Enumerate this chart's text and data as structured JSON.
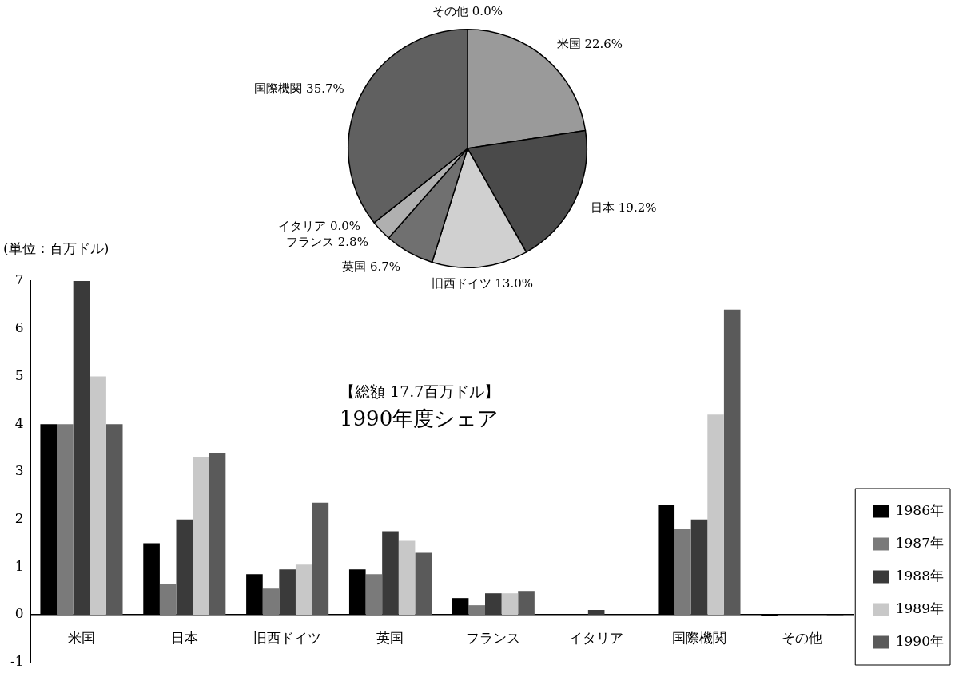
{
  "chart_data": [
    {
      "type": "pie",
      "title": "【総額 17.7百万ドル】",
      "subtitle": "1990年度シェア",
      "categories": [
        "米国",
        "日本",
        "旧西ドイツ",
        "英国",
        "フランス",
        "イタリア",
        "国際機関",
        "その他"
      ],
      "values": [
        22.6,
        19.2,
        13.0,
        6.7,
        2.8,
        0.0,
        35.7,
        0.0
      ],
      "value_labels": [
        "22.6%",
        "19.2%",
        "13.0%",
        "6.7%",
        "2.8%",
        "0.0%",
        "35.7%",
        "0.0%"
      ],
      "colors": [
        "#9a9a9a",
        "#4a4a4a",
        "#d0d0d0",
        "#707070",
        "#b0b0b0",
        "#000000",
        "#606060",
        "#ffffff"
      ]
    },
    {
      "type": "bar",
      "ylabel": "(単位：百万ドル)",
      "categories": [
        "米国",
        "日本",
        "旧西ドイツ",
        "英国",
        "フランス",
        "イタリア",
        "国際機関",
        "その他"
      ],
      "series": [
        {
          "name": "1986年",
          "color": "#000000",
          "values": [
            4,
            1.5,
            0.85,
            0.95,
            0.35,
            0,
            2.3,
            -0.03
          ]
        },
        {
          "name": "1987年",
          "color": "#7a7a7a",
          "values": [
            4,
            0.65,
            0.55,
            0.85,
            0.2,
            0,
            1.8,
            0
          ]
        },
        {
          "name": "1988年",
          "color": "#3a3a3a",
          "values": [
            7,
            2.0,
            0.95,
            1.75,
            0.45,
            0.1,
            2.0,
            0
          ]
        },
        {
          "name": "1989年",
          "color": "#c8c8c8",
          "values": [
            5,
            3.3,
            1.05,
            1.55,
            0.45,
            0,
            4.2,
            0
          ]
        },
        {
          "name": "1990年",
          "color": "#5a5a5a",
          "values": [
            4,
            3.4,
            2.35,
            1.3,
            0.5,
            0,
            6.4,
            -0.03
          ]
        }
      ],
      "ylim": [
        -1,
        7
      ],
      "yticks": [
        -1,
        0,
        1,
        2,
        3,
        4,
        5,
        6,
        7
      ],
      "grid": false,
      "legend": "bottom right"
    }
  ]
}
